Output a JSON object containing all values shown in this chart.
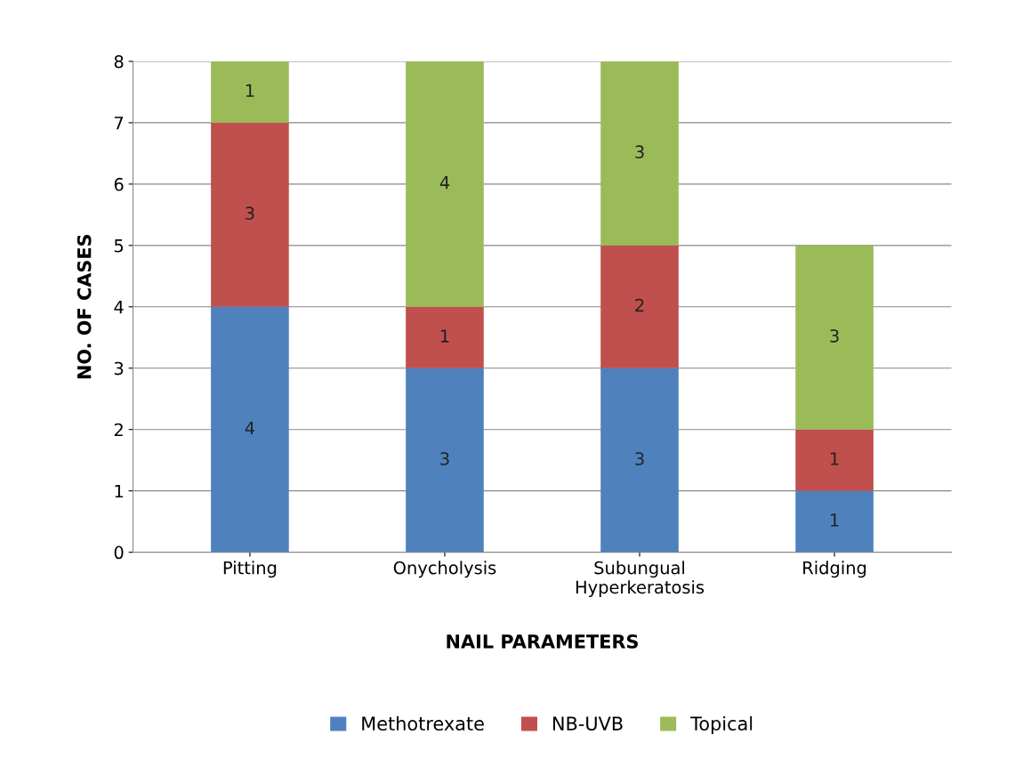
{
  "chart_data": {
    "type": "bar",
    "stacked": true,
    "xlabel": "NAIL PARAMETERS",
    "ylabel": "NO. OF CASES",
    "categories": [
      "Pitting",
      "Onycholysis",
      "Subungual\nHyperkeratosis",
      "Ridging"
    ],
    "series": [
      {
        "name": "Methotrexate",
        "color": "#4f81bd",
        "values": [
          4,
          3,
          3,
          1
        ]
      },
      {
        "name": "NB-UVB",
        "color": "#c0504d",
        "values": [
          3,
          1,
          2,
          1
        ]
      },
      {
        "name": "Topical",
        "color": "#9bbb59",
        "values": [
          1,
          4,
          3,
          3
        ]
      }
    ],
    "ylim": [
      0,
      8
    ],
    "yticks": [
      0,
      1,
      2,
      3,
      4,
      5,
      6,
      7,
      8
    ],
    "grid": "y",
    "legend": "bottom",
    "data_labels": true
  }
}
